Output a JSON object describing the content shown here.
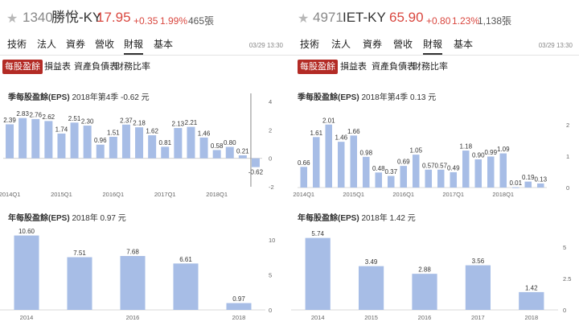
{
  "colors": {
    "up": "#d9473f",
    "bar": "#a7bde6",
    "active_subtab": "#b32b25"
  },
  "left": {
    "header": {
      "star_icon": "star-icon",
      "code": "1340",
      "name": "勝悅-KY",
      "price": "17.95",
      "change": "+0.35",
      "pct": "1.99%",
      "volume": "465張"
    },
    "tabs": [
      "技術",
      "法人",
      "資券",
      "營收",
      "財報",
      "基本"
    ],
    "active_tab": "財報",
    "timestamp": "03/29 13:30",
    "subtabs": [
      "每股盈餘",
      "損益表",
      "資產負債表",
      "財務比率"
    ],
    "active_subtab": "每股盈餘",
    "quarterly": {
      "title_bold": "季每股盈餘(EPS)",
      "title_rest": " 2018年第4季 -0.62 元"
    },
    "annual": {
      "title_bold": "年每股盈餘(EPS)",
      "title_rest": " 2018年 0.97 元"
    }
  },
  "right": {
    "header": {
      "star_icon": "star-icon",
      "code": "4971",
      "name": "IET-KY",
      "price": "65.90",
      "change": "+0.80",
      "pct": "1.23%",
      "volume": "1,138張"
    },
    "tabs": [
      "技術",
      "法人",
      "資券",
      "營收",
      "財報",
      "基本"
    ],
    "active_tab": "財報",
    "timestamp": "03/29 13:30",
    "subtabs": [
      "每股盈餘",
      "損益表",
      "資產負債表",
      "財務比率"
    ],
    "active_subtab": "每股盈餘",
    "quarterly": {
      "title_bold": "季每股盈餘(EPS)",
      "title_rest": " 2018年第4季 0.13 元"
    },
    "annual": {
      "title_bold": "年每股盈餘(EPS)",
      "title_rest": " 2018年 1.42 元"
    }
  },
  "chart_data": [
    {
      "type": "bar",
      "stock": "1340",
      "categories": [
        "2014Q1",
        "2014Q2",
        "2014Q3",
        "2014Q4",
        "2015Q1",
        "2015Q2",
        "2015Q3",
        "2015Q4",
        "2016Q1",
        "2016Q2",
        "2016Q3",
        "2016Q4",
        "2017Q1",
        "2017Q2",
        "2017Q3",
        "2017Q4",
        "2018Q1",
        "2018Q2",
        "2018Q3",
        "2018Q4"
      ],
      "values": [
        2.39,
        2.83,
        2.76,
        2.62,
        1.74,
        2.51,
        2.3,
        0.96,
        1.51,
        2.37,
        2.18,
        1.62,
        0.81,
        2.13,
        2.21,
        1.46,
        0.58,
        0.8,
        0.21,
        -0.62
      ],
      "x_ticks": [
        "2014Q1",
        "2015Q1",
        "2016Q1",
        "2017Q1",
        "2018Q1"
      ],
      "y_ticks": [
        "4",
        "2",
        "0",
        "-2"
      ],
      "ylim": [
        -2,
        4
      ]
    },
    {
      "type": "bar",
      "stock": "1340",
      "categories": [
        "2014",
        "2015",
        "2016",
        "2017",
        "2018"
      ],
      "values": [
        10.6,
        7.51,
        7.68,
        6.61,
        0.97
      ],
      "x_ticks": [
        "2014",
        "2016",
        "2018"
      ],
      "y_ticks": [
        "10",
        "5",
        "0"
      ],
      "ylim": [
        0,
        12.5
      ]
    },
    {
      "type": "bar",
      "stock": "4971",
      "categories": [
        "2014Q1",
        "2014Q2",
        "2014Q3",
        "2014Q4",
        "2015Q1",
        "2015Q2",
        "2015Q3",
        "2015Q4",
        "2016Q1",
        "2016Q2",
        "2016Q3",
        "2016Q4",
        "2017Q1",
        "2017Q2",
        "2017Q3",
        "2017Q4",
        "2018Q1",
        "2018Q2",
        "2018Q3",
        "2018Q4"
      ],
      "values": [
        0.66,
        1.61,
        2.01,
        1.46,
        1.66,
        0.98,
        0.48,
        0.37,
        0.69,
        1.05,
        0.57,
        0.57,
        0.49,
        1.18,
        0.9,
        0.99,
        1.09,
        0.01,
        0.19,
        0.13
      ],
      "x_ticks": [
        "2014Q1",
        "2015Q1",
        "2016Q1",
        "2017Q1",
        "2018Q1"
      ],
      "y_ticks": [
        "2",
        "1",
        "0"
      ],
      "ylim": [
        0,
        2.8
      ]
    },
    {
      "type": "bar",
      "stock": "4971",
      "categories": [
        "2014",
        "2015",
        "2016",
        "2017",
        "2018"
      ],
      "values": [
        5.74,
        3.49,
        2.88,
        3.56,
        1.42
      ],
      "x_ticks": [
        "2014",
        "2015",
        "2016",
        "2017",
        "2018"
      ],
      "y_ticks": [
        "5",
        "2.5",
        "0"
      ],
      "ylim": [
        0,
        7
      ]
    }
  ]
}
